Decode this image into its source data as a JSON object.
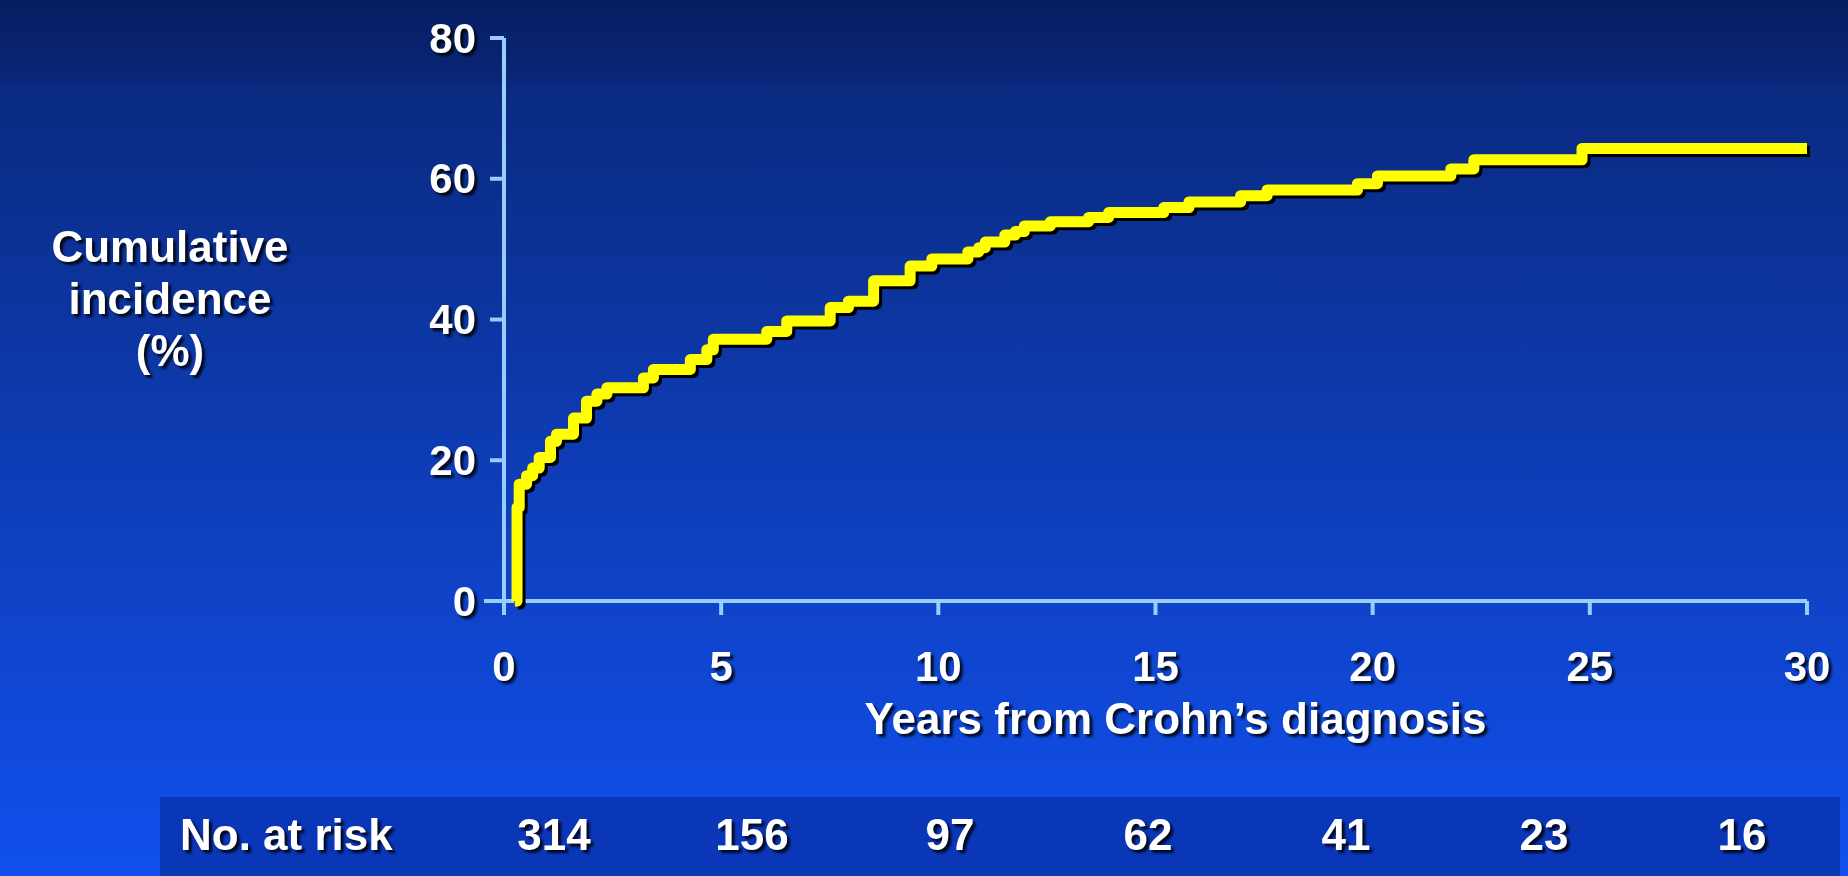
{
  "chart_data": {
    "type": "step",
    "xlabel": "Years from Crohn’s diagnosis",
    "ylabel": "Cumulative incidence (%)",
    "xlim": [
      0,
      30
    ],
    "xticks": [
      0,
      5,
      10,
      15,
      20,
      25,
      30
    ],
    "ylim": [
      0,
      80
    ],
    "yticks": [
      0,
      20,
      40,
      60,
      80
    ],
    "series": [
      {
        "color": "#ffff00",
        "x": [
          0.25,
          0.3,
          0.35,
          0.52,
          0.66,
          0.81,
          1.07,
          1.21,
          1.6,
          1.9,
          2.14,
          2.37,
          3.21,
          3.44,
          4.29,
          4.67,
          4.82,
          6.05,
          6.51,
          7.51,
          7.93,
          8.51,
          9.35,
          9.85,
          10.68,
          10.93,
          11.08,
          11.53,
          11.77,
          11.98,
          12.58,
          13.46,
          13.92,
          15.19,
          15.77,
          16.96,
          17.57,
          19.65,
          20.11,
          21.8,
          22.33,
          24.82,
          30
        ],
        "values": [
          0,
          13.3,
          16.6,
          17.8,
          18.9,
          20.4,
          22.7,
          23.7,
          26,
          28.4,
          29.4,
          30.3,
          31.7,
          32.9,
          34.3,
          35.7,
          37.2,
          38.3,
          39.8,
          41.7,
          42.6,
          45.5,
          47.6,
          48.6,
          49.6,
          50.2,
          51,
          52,
          52.5,
          53.3,
          53.9,
          54.5,
          55.2,
          55.9,
          56.7,
          57.6,
          58.4,
          59.3,
          60.4,
          61.4,
          62.7,
          64.3,
          64.3
        ]
      }
    ],
    "annotations": [
      "No. at risk",
      "314",
      "156",
      "97",
      "62",
      "41",
      "23",
      "16"
    ]
  }
}
